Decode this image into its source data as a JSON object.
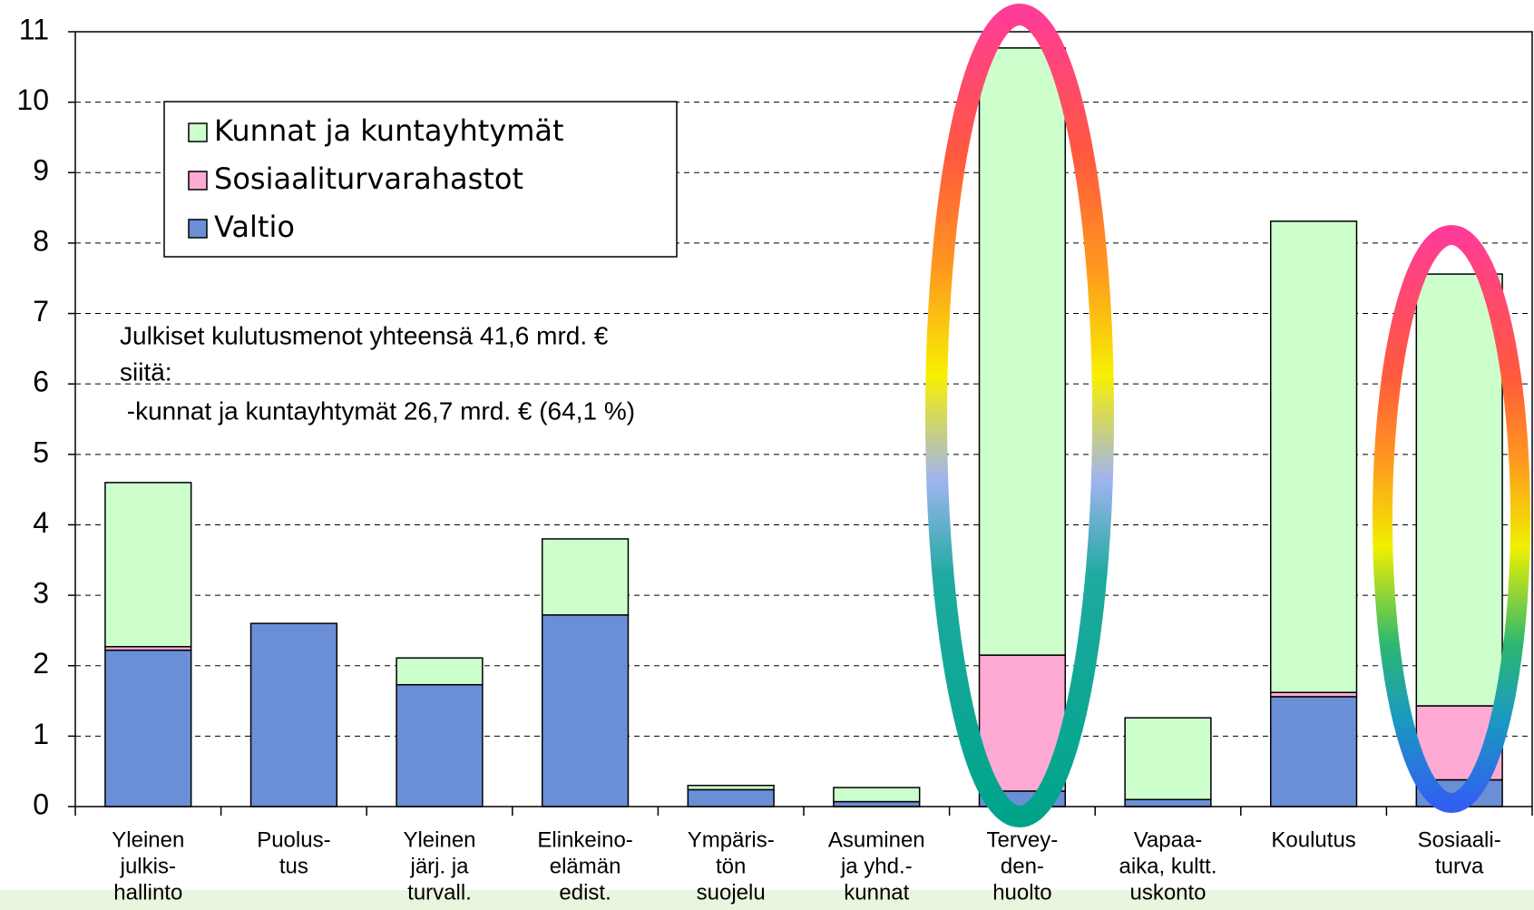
{
  "chart_data": {
    "type": "stacked-bar",
    "categories": [
      [
        "Yleinen",
        "julkis-",
        "hallinto"
      ],
      [
        "Puolus-",
        "tus"
      ],
      [
        "Yleinen",
        "järj. ja",
        "turvall."
      ],
      [
        "Elinkeino-",
        "elämän",
        "edist."
      ],
      [
        "Ympäris-",
        "tön",
        "suojelu"
      ],
      [
        "Asuminen",
        "ja yhd.-",
        "kunnat"
      ],
      [
        "Tervey-",
        "den-",
        "huolto"
      ],
      [
        "Vapaa-",
        "aika, kultt.",
        "uskonto"
      ],
      [
        "Koulutus"
      ],
      [
        "Sosiaali-",
        "turva"
      ]
    ],
    "series": [
      {
        "name": "Valtio",
        "color": "#6b8fd6",
        "values": [
          2.22,
          2.6,
          1.73,
          2.72,
          0.24,
          0.07,
          0.22,
          0.1,
          1.56,
          0.38
        ]
      },
      {
        "name": "Sosiaaliturvarahastot",
        "color": "#ffaad4",
        "values": [
          0.05,
          0,
          0,
          0,
          0,
          0,
          1.93,
          0,
          0.06,
          1.05
        ]
      },
      {
        "name": "Kunnat ja kuntayhtymät",
        "color": "#ccffcc",
        "values": [
          2.33,
          0,
          0.38,
          1.08,
          0.06,
          0.2,
          8.62,
          1.16,
          6.69,
          6.13
        ]
      }
    ],
    "ylim": [
      0,
      11
    ],
    "yticks": [
      0,
      1,
      2,
      3,
      4,
      5,
      6,
      7,
      8,
      9,
      10,
      11
    ],
    "grid": true,
    "annotation": [
      "Julkiset kulutusmenot yhteensä 41,6 mrd. €",
      "siitä:",
      " -kunnat ja kuntayhtymät 26,7 mrd. € (64,1 %)"
    ]
  }
}
